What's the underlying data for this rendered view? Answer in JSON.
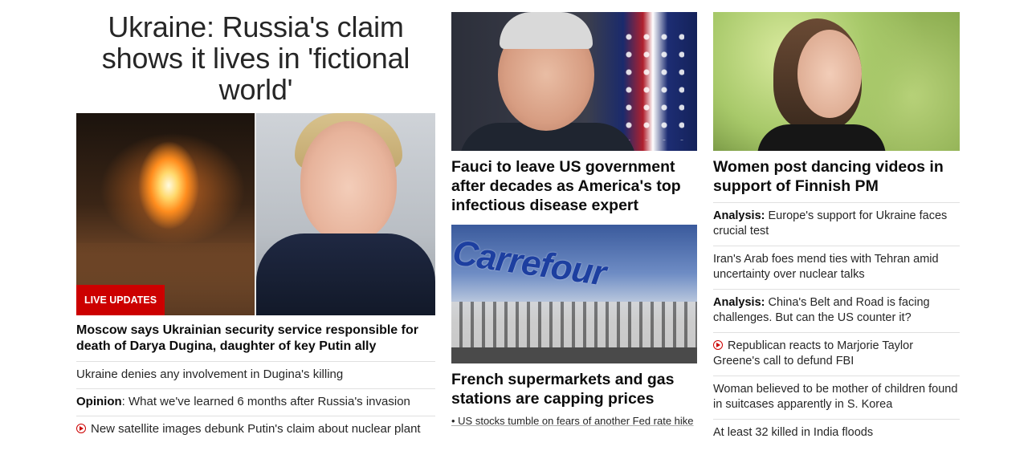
{
  "col1": {
    "headline": "Ukraine: Russia's claim shows it lives in 'fictional world'",
    "badge": "LIVE UPDATES",
    "lead": "Moscow says Ukrainian security service responsible for death of Darya Dugina, daughter of key Putin ally",
    "items": [
      {
        "label": "",
        "text": "Ukraine denies any involvement in Dugina's killing",
        "video": false
      },
      {
        "label": "Opinion",
        "text": ": What we've learned 6 months after Russia's invasion",
        "video": false
      },
      {
        "label": "",
        "text": "New satellite images debunk Putin's claim about nuclear plant",
        "video": true
      }
    ]
  },
  "col2": {
    "card1_title": "Fauci to leave US government after decades as America's top infectious disease expert",
    "card2_title": "French supermarkets and gas stations are capping prices",
    "card2_sign": "Carrefour",
    "card2_sub": "• US stocks tumble on fears of another Fed rate hike"
  },
  "col3": {
    "card_title": "Women post dancing videos in support of Finnish PM",
    "items": [
      {
        "label": "Analysis:",
        "text": " Europe's support for Ukraine faces crucial test",
        "video": false
      },
      {
        "label": "",
        "text": "Iran's Arab foes mend ties with Tehran amid uncertainty over nuclear talks",
        "video": false
      },
      {
        "label": "Analysis:",
        "text": " China's Belt and Road is facing challenges. But can the US counter it?",
        "video": false
      },
      {
        "label": "",
        "text": "Republican reacts to Marjorie Taylor Greene's call to defund FBI",
        "video": true
      },
      {
        "label": "",
        "text": "Woman believed to be mother of children found in suitcases apparently in S. Korea",
        "video": false
      },
      {
        "label": "",
        "text": "At least 32 killed in India floods",
        "video": false
      }
    ]
  },
  "colors": {
    "accent": "#cc0000",
    "divider": "#e0e0e0",
    "text": "#0c0c0c"
  },
  "icons": {
    "video": "play-circle-icon"
  }
}
